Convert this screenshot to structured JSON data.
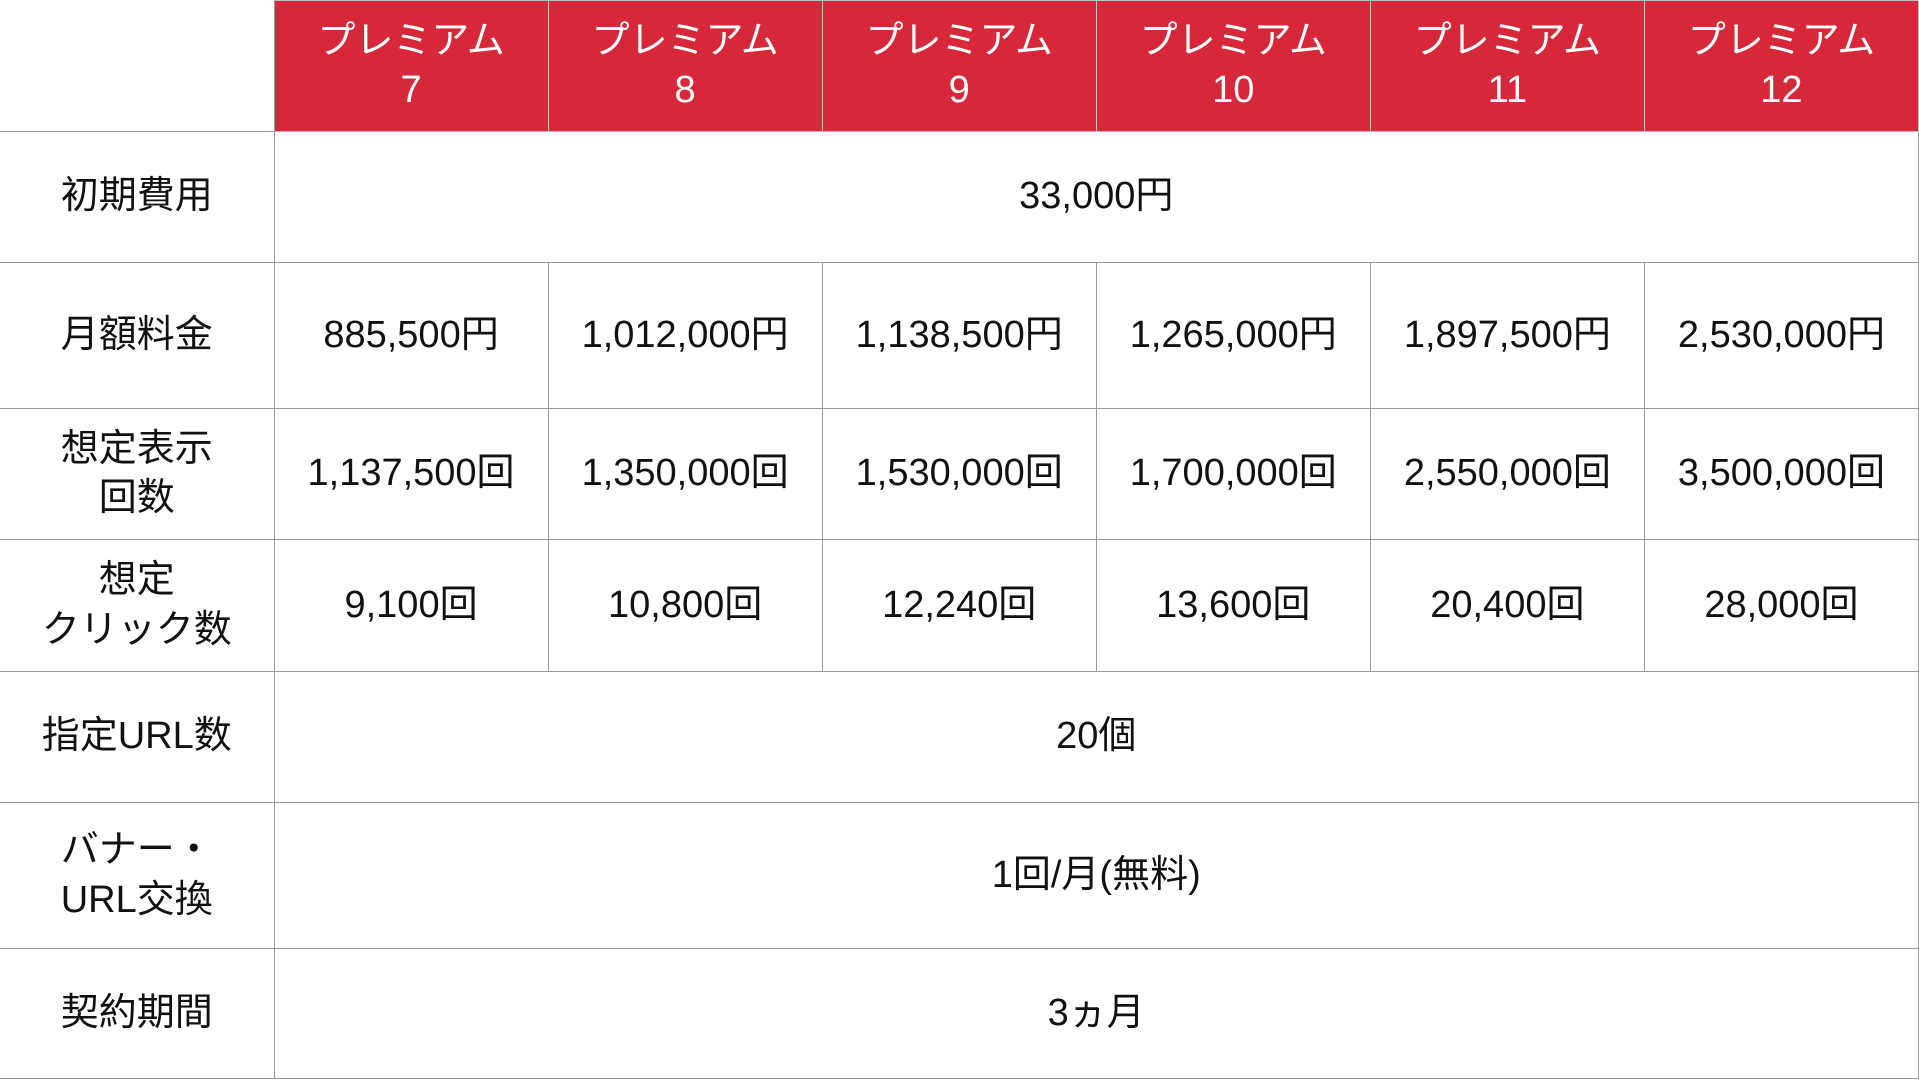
{
  "plans": [
    {
      "name": "プレミアム",
      "num": "7"
    },
    {
      "name": "プレミアム",
      "num": "8"
    },
    {
      "name": "プレミアム",
      "num": "9"
    },
    {
      "name": "プレミアム",
      "num": "10"
    },
    {
      "name": "プレミアム",
      "num": "11"
    },
    {
      "name": "プレミアム",
      "num": "12"
    }
  ],
  "rows": {
    "initial_fee": {
      "label": "初期費用",
      "value": "33,000円"
    },
    "monthly_fee": {
      "label": "月額料金",
      "values": [
        "885,500円",
        "1,012,000円",
        "1,138,500円",
        "1,265,000円",
        "1,897,500円",
        "2,530,000円"
      ]
    },
    "impressions": {
      "label_1": "想定表示",
      "label_2": "回数",
      "values": [
        "1,137,500回",
        "1,350,000回",
        "1,530,000回",
        "1,700,000回",
        "2,550,000回",
        "3,500,000回"
      ]
    },
    "clicks": {
      "label_1": "想定",
      "label_2": "クリック数",
      "values": [
        "9,100回",
        "10,800回",
        "12,240回",
        "13,600回",
        "20,400回",
        "28,000回"
      ]
    },
    "urls": {
      "label": "指定URL数",
      "value": "20個"
    },
    "banner_exchange": {
      "label_1": "バナー・",
      "label_2": "URL交換",
      "value": "1回/月(無料)"
    },
    "contract": {
      "label": "契約期間",
      "value": "3ヵ月"
    }
  },
  "colors": {
    "header_bg": "#d62839",
    "border": "#9a9a9a"
  }
}
